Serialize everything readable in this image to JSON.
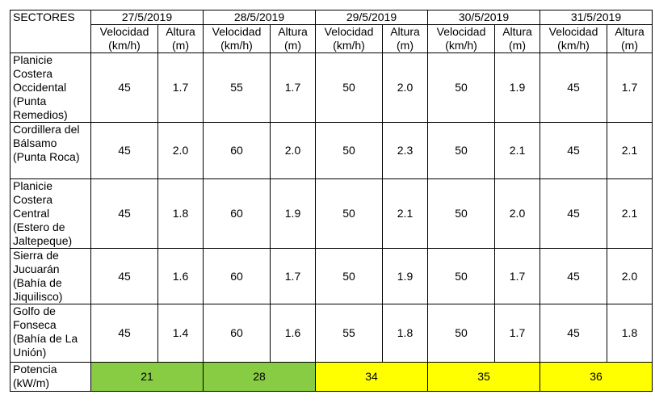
{
  "table": {
    "sectors_label": "SECTORES",
    "dates": [
      "27/5/2019",
      "28/5/2019",
      "29/5/2019",
      "30/5/2019",
      "31/5/2019"
    ],
    "subheaders": [
      [
        "Velocidad (km/h)",
        "Altura (m)"
      ],
      [
        "Velocidad (km/h)",
        "Altura (m)"
      ],
      [
        "Velocidad (km/h)",
        "Altura (m)"
      ],
      [
        "Velocidad (km/h)",
        "Altura (m)"
      ],
      [
        "Velocidad (km/h)",
        "Altura (m)"
      ]
    ],
    "rows": [
      {
        "sector": "Planicie Costera Occidental (Punta Remedios)",
        "values": [
          [
            "45",
            "1.7"
          ],
          [
            "55",
            "1.7"
          ],
          [
            "50",
            "2.0"
          ],
          [
            "50",
            "1.9"
          ],
          [
            "45",
            "1.7"
          ]
        ]
      },
      {
        "sector": "Cordillera del Bálsamo (Punta Roca)",
        "values": [
          [
            "45",
            "2.0"
          ],
          [
            "60",
            "2.0"
          ],
          [
            "50",
            "2.3"
          ],
          [
            "50",
            "2.1"
          ],
          [
            "45",
            "2.1"
          ]
        ]
      },
      {
        "sector": "Planicie Costera Central (Estero de Jaltepeque)",
        "values": [
          [
            "45",
            "1.8"
          ],
          [
            "60",
            "1.9"
          ],
          [
            "50",
            "2.1"
          ],
          [
            "50",
            "2.0"
          ],
          [
            "45",
            "2.1"
          ]
        ]
      },
      {
        "sector": "Sierra de Jucuarán (Bahía de Jiquilisco)",
        "values": [
          [
            "45",
            "1.6"
          ],
          [
            "60",
            "1.7"
          ],
          [
            "50",
            "1.9"
          ],
          [
            "50",
            "1.7"
          ],
          [
            "45",
            "2.0"
          ]
        ]
      },
      {
        "sector": "Golfo de Fonseca (Bahía de La Unión)",
        "values": [
          [
            "45",
            "1.4"
          ],
          [
            "60",
            "1.6"
          ],
          [
            "55",
            "1.8"
          ],
          [
            "50",
            "1.7"
          ],
          [
            "45",
            "1.8"
          ]
        ]
      }
    ],
    "footer": {
      "label": "Potencia (kW/m)",
      "values": [
        "21",
        "28",
        "34",
        "35",
        "36"
      ],
      "fills": [
        "#88cc44",
        "#88cc44",
        "#ffff00",
        "#ffff00",
        "#ffff00"
      ]
    }
  }
}
